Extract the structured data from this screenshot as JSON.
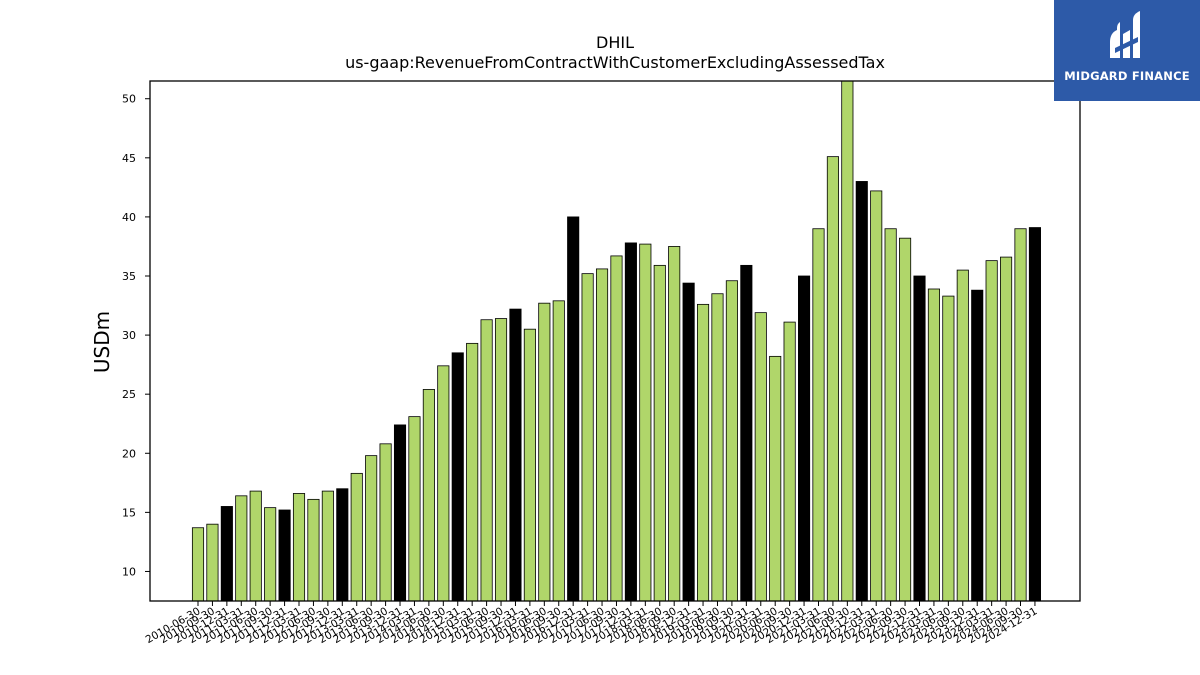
{
  "logo": {
    "text": "MIDGARD FINANCE",
    "background": "#2d5aa8"
  },
  "colors": {
    "bar_regular": "#b0d66a",
    "bar_highlight": "#000000"
  },
  "chart_data": {
    "type": "bar",
    "title": "DHIL",
    "subtitle": "us-gaap:RevenueFromContractWithCustomerExcludingAssessedTax",
    "xlabel": "",
    "ylabel": "USDm",
    "ylim": [
      7.5,
      51.5
    ],
    "yticks": [
      10,
      15,
      20,
      25,
      30,
      35,
      40,
      45,
      50
    ],
    "grid": false,
    "categories": [
      "2010-06-30",
      "2010-09-30",
      "2010-12-31",
      "2011-03-31",
      "2011-06-30",
      "2011-09-30",
      "2011-12-31",
      "2012-03-31",
      "2012-06-30",
      "2012-09-30",
      "2012-12-31",
      "2013-03-31",
      "2013-06-30",
      "2013-09-30",
      "2013-12-31",
      "2014-03-31",
      "2014-06-30",
      "2014-09-30",
      "2014-12-31",
      "2015-03-31",
      "2015-06-30",
      "2015-09-30",
      "2015-12-31",
      "2016-03-31",
      "2016-06-30",
      "2016-09-30",
      "2016-12-31",
      "2017-03-31",
      "2017-06-30",
      "2017-09-30",
      "2017-12-31",
      "2018-03-31",
      "2018-06-30",
      "2018-09-30",
      "2018-12-31",
      "2019-03-31",
      "2019-06-30",
      "2019-09-30",
      "2019-12-31",
      "2020-03-31",
      "2020-06-30",
      "2020-09-30",
      "2020-12-31",
      "2021-03-31",
      "2021-06-30",
      "2021-09-30",
      "2021-12-31",
      "2022-03-31",
      "2022-06-30",
      "2022-09-30",
      "2022-12-31",
      "2023-03-31",
      "2023-06-30",
      "2023-09-30",
      "2023-12-31",
      "2024-03-31",
      "2024-06-30",
      "2024-09-30",
      "2024-12-31"
    ],
    "values": [
      13.7,
      14.0,
      15.5,
      16.4,
      16.8,
      15.4,
      15.2,
      16.6,
      16.1,
      16.8,
      17.0,
      18.3,
      19.8,
      20.8,
      22.4,
      23.1,
      25.4,
      27.4,
      28.5,
      29.3,
      31.3,
      31.4,
      32.2,
      30.5,
      32.7,
      32.9,
      40.0,
      35.2,
      35.6,
      36.7,
      37.8,
      37.7,
      35.9,
      37.5,
      34.4,
      32.6,
      33.5,
      34.6,
      35.9,
      31.9,
      28.2,
      31.1,
      35.0,
      39.0,
      45.1,
      51.5,
      43.0,
      42.2,
      39.0,
      38.2,
      35.0,
      33.9,
      33.3,
      35.5,
      33.8,
      36.3,
      36.6,
      39.0,
      39.1
    ],
    "highlight_black": [
      false,
      false,
      true,
      false,
      false,
      false,
      true,
      false,
      false,
      false,
      true,
      false,
      false,
      false,
      true,
      false,
      false,
      false,
      true,
      false,
      false,
      false,
      true,
      false,
      false,
      false,
      true,
      false,
      false,
      false,
      true,
      false,
      false,
      false,
      true,
      false,
      false,
      false,
      true,
      false,
      false,
      false,
      true,
      false,
      false,
      false,
      true,
      false,
      false,
      false,
      true,
      false,
      false,
      false,
      true,
      false,
      false,
      false,
      true
    ]
  }
}
